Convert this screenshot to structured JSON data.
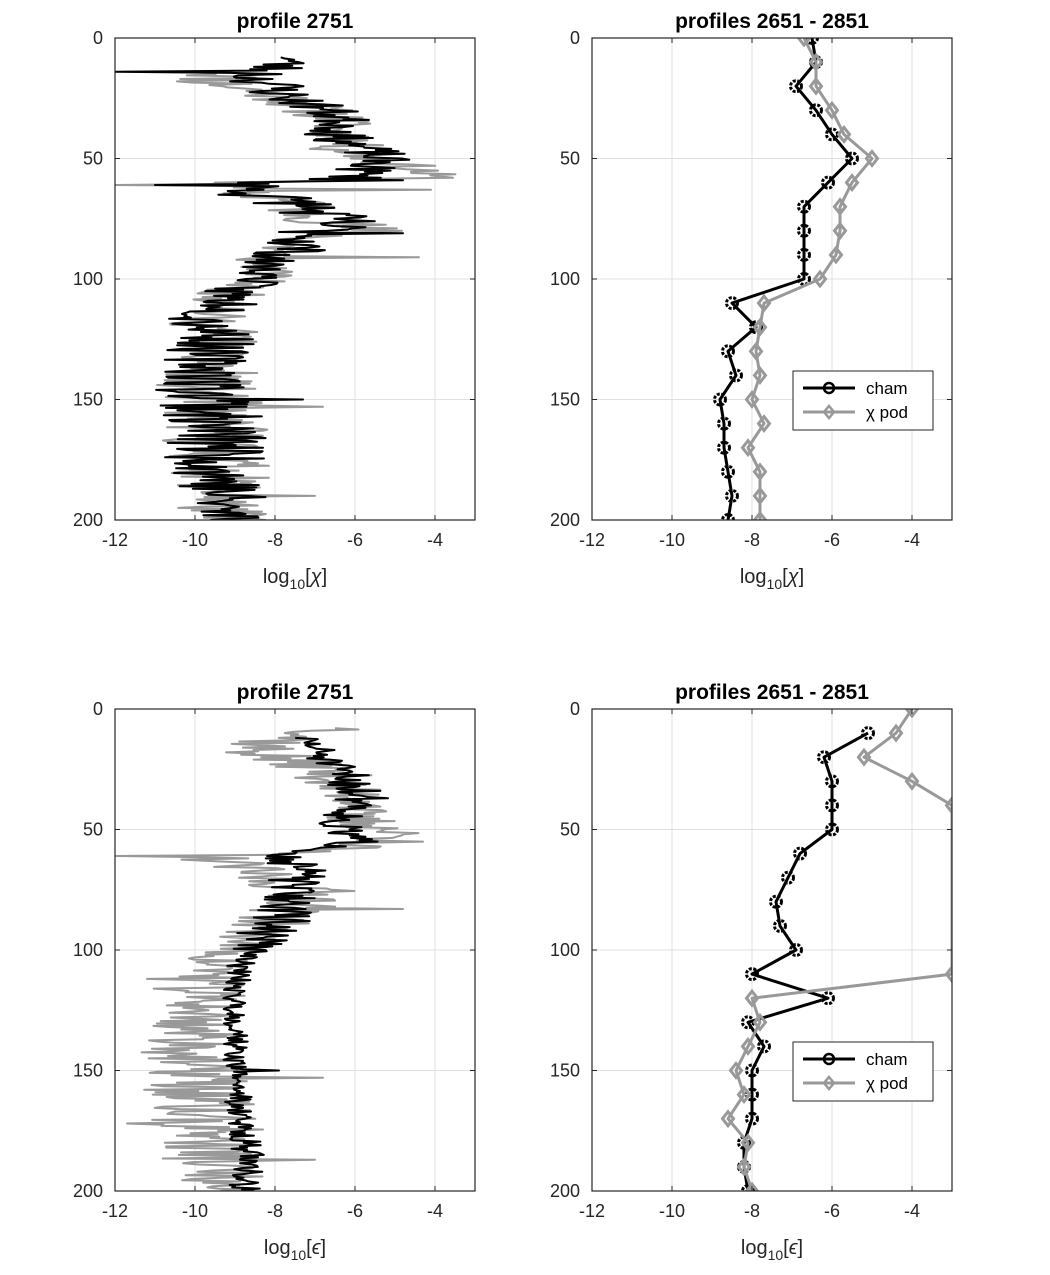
{
  "charts": [
    {
      "type": "line",
      "title": "profile 2751",
      "xlabel_base": "log",
      "xlabel_sub": "10",
      "xlabel_var": "χ",
      "xlim": [
        -12,
        -3
      ],
      "ylim": [
        0,
        200
      ],
      "y_reversed": true,
      "xticks": [
        "-12",
        "-10",
        "-8",
        "-6",
        "-4"
      ],
      "xtick_values": [
        -12,
        -10,
        -8,
        -6,
        -4
      ],
      "yticks": [
        "0",
        "50",
        "100",
        "150",
        "200"
      ],
      "ytick_values": [
        0,
        50,
        100,
        150,
        200
      ],
      "grid": true,
      "series": [
        {
          "color": "#999999",
          "width": 2,
          "style": "noisy",
          "seed": 11,
          "depth": [
            14,
            18,
            22,
            26,
            30,
            34,
            38,
            42,
            46,
            50,
            55,
            58,
            60,
            62,
            65,
            68,
            72,
            76,
            80,
            84,
            88,
            92,
            96,
            100,
            104,
            108,
            112,
            116,
            120,
            124,
            128,
            132,
            136,
            140,
            144,
            148,
            152,
            156,
            160,
            164,
            168,
            172,
            176,
            180,
            184,
            188,
            192,
            196,
            200
          ],
          "value": [
            -9.0,
            -9.5,
            -8.5,
            -7.5,
            -7.0,
            -6.3,
            -6.5,
            -6.0,
            -6.3,
            -5.5,
            -4.4,
            -4.1,
            -8.5,
            -9.0,
            -8.8,
            -7.0,
            -7.5,
            -6.5,
            -5.8,
            -7.5,
            -8.0,
            -8.3,
            -8.2,
            -8.2,
            -9.0,
            -9.2,
            -9.0,
            -9.8,
            -9.5,
            -9.2,
            -9.6,
            -9.8,
            -9.6,
            -9.6,
            -9.8,
            -9.7,
            -9.5,
            -9.6,
            -9.6,
            -9.4,
            -9.5,
            -9.5,
            -9.3,
            -9.4,
            -9.3,
            -9.3,
            -9.3,
            -9.4,
            -9.2
          ],
          "amp": [
            1.2,
            1.2,
            1.0,
            1.0,
            1.0,
            0.9,
            0.8,
            0.9,
            0.9,
            1.0,
            0.8,
            0.8,
            1.5,
            1.0,
            0.8,
            0.9,
            0.9,
            1.2,
            1.2,
            0.9,
            0.9,
            0.8,
            0.7,
            0.6,
            0.8,
            0.9,
            0.9,
            1.0,
            1.1,
            1.1,
            1.0,
            1.1,
            1.1,
            1.2,
            1.3,
            1.3,
            1.4,
            1.3,
            1.2,
            1.4,
            1.4,
            1.4,
            1.3,
            1.2,
            1.2,
            1.2,
            1.2,
            1.2,
            1.2
          ],
          "spikes": [
            [
              13,
              -12.0
            ],
            [
              61,
              -12.0
            ],
            [
              91,
              -4.4
            ],
            [
              63,
              -4.1
            ],
            [
              153,
              -6.8
            ],
            [
              190,
              -7.0
            ]
          ]
        },
        {
          "color": "#000000",
          "width": 2,
          "style": "noisy",
          "seed": 23,
          "depth": [
            8,
            12,
            16,
            20,
            24,
            28,
            32,
            36,
            40,
            44,
            48,
            52,
            55,
            58,
            60,
            62,
            65,
            68,
            72,
            76,
            80,
            84,
            88,
            92,
            96,
            100,
            104,
            108,
            112,
            116,
            120,
            124,
            128,
            132,
            136,
            140,
            144,
            148,
            152,
            156,
            160,
            164,
            168,
            172,
            176,
            180,
            184,
            188,
            192,
            196,
            200
          ],
          "value": [
            -7.5,
            -8.0,
            -8.5,
            -8.0,
            -7.8,
            -7.0,
            -6.5,
            -6.2,
            -6.5,
            -6.1,
            -5.5,
            -5.4,
            -5.8,
            -6.0,
            -8.0,
            -8.5,
            -8.5,
            -7.5,
            -7.0,
            -6.5,
            -6.8,
            -7.3,
            -7.5,
            -8.2,
            -8.3,
            -8.3,
            -9.0,
            -9.2,
            -9.0,
            -9.8,
            -9.5,
            -9.3,
            -9.6,
            -9.8,
            -9.6,
            -9.6,
            -9.8,
            -9.7,
            -9.5,
            -9.6,
            -9.6,
            -9.4,
            -9.5,
            -9.5,
            -9.3,
            -9.4,
            -9.3,
            -9.3,
            -9.3,
            -9.4,
            -9.0
          ],
          "amp": [
            0.7,
            0.9,
            1.0,
            0.9,
            0.9,
            0.8,
            0.8,
            0.8,
            0.8,
            0.8,
            0.8,
            0.8,
            0.8,
            0.8,
            1.0,
            1.0,
            1.0,
            1.1,
            1.1,
            1.2,
            1.2,
            0.9,
            0.9,
            0.7,
            0.6,
            0.6,
            0.8,
            0.9,
            0.9,
            1.0,
            1.1,
            1.1,
            1.0,
            1.1,
            1.1,
            1.2,
            1.3,
            1.3,
            1.4,
            1.3,
            1.2,
            1.4,
            1.4,
            1.4,
            1.3,
            1.2,
            1.2,
            1.2,
            1.2,
            1.2,
            1.2
          ],
          "spikes": [
            [
              14,
              -12.0
            ],
            [
              61,
              -11.0
            ],
            [
              59,
              -4.8
            ],
            [
              81,
              -4.8
            ],
            [
              150,
              -7.3
            ],
            [
              170,
              -8.3
            ]
          ]
        }
      ]
    },
    {
      "type": "line",
      "title": "profiles 2651 - 2851",
      "xlabel_base": "log",
      "xlabel_sub": "10",
      "xlabel_var": "χ",
      "xlim": [
        -12,
        -3
      ],
      "ylim": [
        0,
        200
      ],
      "y_reversed": true,
      "xticks": [
        "-12",
        "-10",
        "-8",
        "-6",
        "-4"
      ],
      "xtick_values": [
        -12,
        -10,
        -8,
        -6,
        -4
      ],
      "yticks": [
        "0",
        "50",
        "100",
        "150",
        "200"
      ],
      "ytick_values": [
        0,
        50,
        100,
        150,
        200
      ],
      "grid": true,
      "legend": {
        "position": "lower-right",
        "entries": [
          {
            "label": "cham",
            "color": "#000000",
            "marker": "circle"
          },
          {
            "label": "χ pod",
            "color": "#999999",
            "marker": "diamond"
          }
        ]
      },
      "series": [
        {
          "name": "cham",
          "color": "#000000",
          "width": 3,
          "marker": "circle",
          "depth": [
            0,
            10,
            20,
            30,
            40,
            50,
            60,
            70,
            80,
            90,
            100,
            110,
            120,
            130,
            140,
            150,
            160,
            170,
            180,
            190,
            200
          ],
          "value": [
            -6.5,
            -6.4,
            -6.9,
            -6.4,
            -6.0,
            -5.5,
            -6.1,
            -6.7,
            -6.7,
            -6.7,
            -6.7,
            -8.5,
            -7.9,
            -8.6,
            -8.4,
            -8.8,
            -8.7,
            -8.7,
            -8.6,
            -8.5,
            -8.6
          ]
        },
        {
          "name": "χ pod",
          "color": "#999999",
          "width": 3,
          "marker": "diamond",
          "depth": [
            0,
            10,
            20,
            30,
            40,
            50,
            60,
            70,
            80,
            90,
            100,
            110,
            120,
            130,
            140,
            150,
            160,
            170,
            180,
            190,
            200
          ],
          "value": [
            -6.7,
            -6.4,
            -6.4,
            -6.0,
            -5.7,
            -5.0,
            -5.5,
            -5.8,
            -5.8,
            -5.9,
            -6.3,
            -7.7,
            -7.8,
            -7.9,
            -7.8,
            -8.0,
            -7.7,
            -8.1,
            -7.8,
            -7.8,
            -7.8
          ]
        }
      ]
    },
    {
      "type": "line",
      "title": "profile 2751",
      "xlabel_base": "log",
      "xlabel_sub": "10",
      "xlabel_var": "ϵ",
      "xlim": [
        -12,
        -3
      ],
      "ylim": [
        0,
        200
      ],
      "y_reversed": true,
      "xticks": [
        "-12",
        "-10",
        "-8",
        "-6",
        "-4"
      ],
      "xtick_values": [
        -12,
        -10,
        -8,
        -6,
        -4
      ],
      "yticks": [
        "0",
        "50",
        "100",
        "150",
        "200"
      ],
      "ytick_values": [
        0,
        50,
        100,
        150,
        200
      ],
      "grid": true,
      "series": [
        {
          "color": "#999999",
          "width": 2,
          "style": "noisy",
          "seed": 37,
          "depth": [
            8,
            12,
            16,
            20,
            24,
            28,
            32,
            36,
            40,
            44,
            48,
            52,
            55,
            58,
            60,
            62,
            65,
            68,
            72,
            76,
            80,
            84,
            88,
            92,
            96,
            100,
            104,
            108,
            112,
            116,
            120,
            124,
            128,
            132,
            136,
            140,
            144,
            148,
            152,
            156,
            160,
            164,
            168,
            172,
            176,
            180,
            184,
            188,
            192,
            196,
            200
          ],
          "value": [
            -6.0,
            -7.5,
            -8.5,
            -8.0,
            -7.0,
            -6.5,
            -6.5,
            -6.0,
            -5.5,
            -6.5,
            -5.5,
            -5.0,
            -5.2,
            -6.5,
            -8.5,
            -9.5,
            -9.0,
            -8.5,
            -8.0,
            -7.0,
            -7.0,
            -7.8,
            -8.0,
            -8.5,
            -8.6,
            -9.0,
            -9.5,
            -9.5,
            -9.5,
            -10.0,
            -9.7,
            -9.8,
            -10.0,
            -10.0,
            -10.0,
            -10.0,
            -10.2,
            -10.2,
            -9.8,
            -10.0,
            -10.0,
            -9.8,
            -10.0,
            -9.8,
            -9.5,
            -9.6,
            -9.6,
            -9.5,
            -9.5,
            -9.5,
            -10.0
          ],
          "amp": [
            1.0,
            1.2,
            1.2,
            1.2,
            1.0,
            1.0,
            1.0,
            1.0,
            1.0,
            1.0,
            1.0,
            0.9,
            0.9,
            1.0,
            1.2,
            1.0,
            1.0,
            1.0,
            1.0,
            1.2,
            1.2,
            1.0,
            1.0,
            0.9,
            0.8,
            0.8,
            0.9,
            1.0,
            1.0,
            1.1,
            1.1,
            1.1,
            1.2,
            1.2,
            1.2,
            1.2,
            1.3,
            1.3,
            1.4,
            1.4,
            1.4,
            1.4,
            1.5,
            1.4,
            1.3,
            1.3,
            1.3,
            1.3,
            1.3,
            1.2,
            1.2
          ],
          "spikes": [
            [
              61,
              -12.0
            ],
            [
              55,
              -4.3
            ],
            [
              83,
              -4.8
            ],
            [
              153,
              -6.8
            ],
            [
              187,
              -7.0
            ],
            [
              112,
              -11.2
            ],
            [
              172,
              -11.7
            ]
          ]
        },
        {
          "color": "#000000",
          "width": 2,
          "style": "noisy",
          "seed": 51,
          "depth": [
            12,
            16,
            20,
            24,
            28,
            32,
            36,
            40,
            44,
            48,
            52,
            55,
            58,
            60,
            62,
            65,
            68,
            72,
            76,
            80,
            84,
            88,
            92,
            96,
            100,
            104,
            108,
            112,
            116,
            120,
            124,
            128,
            132,
            136,
            140,
            144,
            148,
            152,
            156,
            160,
            164,
            168,
            172,
            176,
            180,
            184,
            188,
            192,
            196,
            200
          ],
          "value": [
            -7.3,
            -7.0,
            -6.8,
            -6.6,
            -6.2,
            -6.0,
            -5.8,
            -5.8,
            -6.2,
            -6.5,
            -6.2,
            -6.0,
            -6.5,
            -7.5,
            -7.8,
            -7.5,
            -7.2,
            -7.6,
            -7.6,
            -7.6,
            -7.8,
            -7.8,
            -8.2,
            -8.2,
            -8.6,
            -8.8,
            -8.9,
            -8.9,
            -9.0,
            -9.0,
            -9.0,
            -9.0,
            -9.0,
            -8.9,
            -9.0,
            -9.0,
            -9.0,
            -8.9,
            -8.9,
            -8.9,
            -8.9,
            -8.9,
            -8.9,
            -8.8,
            -8.7,
            -8.7,
            -8.6,
            -8.7,
            -8.7,
            -8.8
          ],
          "amp": [
            0.4,
            0.5,
            0.5,
            0.6,
            0.7,
            0.7,
            0.7,
            0.7,
            0.6,
            0.6,
            0.6,
            0.6,
            0.6,
            0.7,
            0.6,
            0.6,
            0.6,
            0.7,
            0.7,
            0.7,
            0.7,
            0.8,
            0.8,
            0.6,
            0.5,
            0.4,
            0.3,
            0.3,
            0.3,
            0.3,
            0.3,
            0.3,
            0.3,
            0.3,
            0.3,
            0.3,
            0.3,
            0.3,
            0.3,
            0.3,
            0.4,
            0.4,
            0.4,
            0.4,
            0.4,
            0.4,
            0.4,
            0.4,
            0.4,
            0.4
          ],
          "spikes": [
            [
              60,
              -7.5
            ],
            [
              150,
              -7.9
            ]
          ]
        }
      ]
    },
    {
      "type": "line",
      "title": "profiles 2651 - 2851",
      "xlabel_base": "log",
      "xlabel_sub": "10",
      "xlabel_var": "ϵ",
      "xlim": [
        -12,
        -3
      ],
      "ylim": [
        0,
        200
      ],
      "y_reversed": true,
      "xticks": [
        "-12",
        "-10",
        "-8",
        "-6",
        "-4"
      ],
      "xtick_values": [
        -12,
        -10,
        -8,
        -6,
        -4
      ],
      "yticks": [
        "0",
        "50",
        "100",
        "150",
        "200"
      ],
      "ytick_values": [
        0,
        50,
        100,
        150,
        200
      ],
      "grid": true,
      "legend": {
        "position": "lower-right",
        "entries": [
          {
            "label": "cham",
            "color": "#000000",
            "marker": "circle"
          },
          {
            "label": "χ pod",
            "color": "#999999",
            "marker": "diamond"
          }
        ]
      },
      "series": [
        {
          "name": "cham",
          "color": "#000000",
          "width": 3,
          "marker": "circle",
          "depth": [
            10,
            20,
            30,
            40,
            50,
            60,
            70,
            80,
            90,
            100,
            110,
            120,
            130,
            140,
            150,
            160,
            170,
            180,
            190,
            200
          ],
          "value": [
            -5.1,
            -6.2,
            -6.0,
            -6.0,
            -6.0,
            -6.8,
            -7.1,
            -7.4,
            -7.3,
            -6.9,
            -8.0,
            -6.1,
            -8.1,
            -7.7,
            -8.0,
            -8.0,
            -8.0,
            -8.2,
            -8.2,
            -8.1
          ]
        },
        {
          "name": "χ pod",
          "color": "#999999",
          "width": 3,
          "marker": "diamond",
          "depth": [
            0,
            10,
            20,
            30,
            40,
            110,
            120,
            130,
            140,
            150,
            160,
            170,
            180,
            190,
            200
          ],
          "value": [
            -4.0,
            -4.4,
            -5.2,
            -4.0,
            -3.0,
            -3.0,
            -8.0,
            -7.8,
            -8.1,
            -8.4,
            -8.2,
            -8.6,
            -8.1,
            -8.2,
            -8.0
          ],
          "clip_at_xmax": true
        }
      ]
    }
  ]
}
